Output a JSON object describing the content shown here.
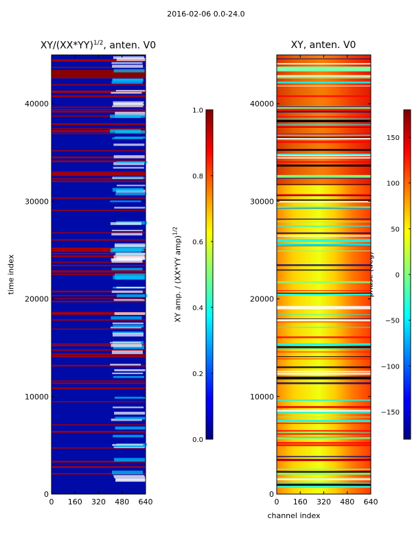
{
  "suptitle": "2016-02-06 0.0-24.0",
  "chart_data": [
    {
      "type": "heatmap",
      "title": "XY/(XX*YY)",
      "title_exponent": "1/2",
      "title_suffix": ", anten. V0",
      "xlabel": "",
      "ylabel": "time index",
      "x_ticks": [
        0,
        160,
        320,
        480,
        640
      ],
      "y_ticks": [
        0,
        10000,
        20000,
        30000,
        40000
      ],
      "xlim": [
        0,
        640
      ],
      "ylim": [
        0,
        45000
      ],
      "colormap": "jet",
      "colorbar": {
        "label": "XY amp. / (XX*YY amp)",
        "label_exponent": "1/2",
        "range": [
          0.0,
          1.0
        ],
        "ticks": [
          "0.0",
          "0.2",
          "0.4",
          "0.6",
          "0.8",
          "1.0"
        ]
      }
    },
    {
      "type": "heatmap",
      "title": "XY, anten. V0",
      "xlabel": "channel index",
      "ylabel": "",
      "x_ticks": [
        0,
        160,
        320,
        480,
        640
      ],
      "y_ticks": [
        0,
        10000,
        20000,
        30000,
        40000
      ],
      "xlim": [
        0,
        640
      ],
      "ylim": [
        0,
        45000
      ],
      "colormap": "jet",
      "colorbar": {
        "label": "phase (deg)",
        "range": [
          -180,
          180
        ],
        "ticks": [
          "−150",
          "−100",
          "−50",
          "0",
          "50",
          "100",
          "150"
        ],
        "tick_values": [
          -150,
          -100,
          -50,
          0,
          50,
          100,
          150
        ]
      }
    }
  ]
}
